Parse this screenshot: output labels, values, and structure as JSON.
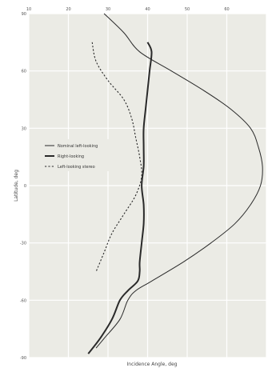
{
  "chart_data": {
    "type": "line",
    "title": "",
    "xlabel": "Incidence Angle, deg",
    "ylabel": "Latitude, deg",
    "xlim": [
      10,
      70
    ],
    "ylim": [
      -90,
      90
    ],
    "grid": true,
    "x_ticks": [
      10,
      20,
      30,
      40,
      50,
      60,
      70
    ],
    "x_tick_labels": [
      "10",
      "20",
      "30",
      "40",
      "50",
      "60",
      ""
    ],
    "y_ticks": [
      -90,
      -60,
      -30,
      0,
      30,
      60,
      90
    ],
    "y_tick_labels": [
      "-90",
      "-60",
      "-30",
      "0",
      "30",
      "60",
      "90"
    ],
    "legend_position": "left, between 0 and 30 deg latitude",
    "colors": {
      "plot_background": "#ebebe5",
      "grid": "#ffffff",
      "curves": "#2a2a2a"
    },
    "series": [
      {
        "name": "Nominal left-looking",
        "style": "thin-solid",
        "points": [
          [
            29,
            90
          ],
          [
            34,
            80
          ],
          [
            38,
            70
          ],
          [
            46,
            60
          ],
          [
            54,
            50
          ],
          [
            61,
            40
          ],
          [
            66,
            30
          ],
          [
            68,
            20
          ],
          [
            69,
            10
          ],
          [
            68.5,
            0
          ],
          [
            66,
            -10
          ],
          [
            62,
            -20
          ],
          [
            56,
            -30
          ],
          [
            49,
            -40
          ],
          [
            41,
            -50
          ],
          [
            37,
            -55
          ],
          [
            35,
            -60
          ],
          [
            33,
            -70
          ],
          [
            29,
            -80
          ],
          [
            27,
            -85
          ]
        ]
      },
      {
        "name": "Right-looking",
        "style": "thick-solid",
        "points": [
          [
            40,
            75
          ],
          [
            41,
            70
          ],
          [
            40.5,
            60
          ],
          [
            40,
            50
          ],
          [
            39.5,
            40
          ],
          [
            39,
            30
          ],
          [
            39,
            20
          ],
          [
            39,
            10
          ],
          [
            38.5,
            0
          ],
          [
            39,
            -10
          ],
          [
            39,
            -20
          ],
          [
            38.5,
            -30
          ],
          [
            38,
            -40
          ],
          [
            38,
            -45
          ],
          [
            37.5,
            -50
          ],
          [
            35,
            -55
          ],
          [
            33,
            -60
          ],
          [
            31,
            -70
          ],
          [
            28,
            -80
          ],
          [
            25,
            -88
          ]
        ]
      },
      {
        "name": "Left-looking stereo",
        "style": "dotted",
        "points": [
          [
            26,
            75
          ],
          [
            27,
            65
          ],
          [
            30,
            55
          ],
          [
            34,
            45
          ],
          [
            36,
            35
          ],
          [
            37,
            25
          ],
          [
            38,
            15
          ],
          [
            38.5,
            5
          ],
          [
            37,
            -5
          ],
          [
            34,
            -15
          ],
          [
            31,
            -25
          ],
          [
            29,
            -35
          ],
          [
            27,
            -45
          ]
        ]
      }
    ]
  }
}
